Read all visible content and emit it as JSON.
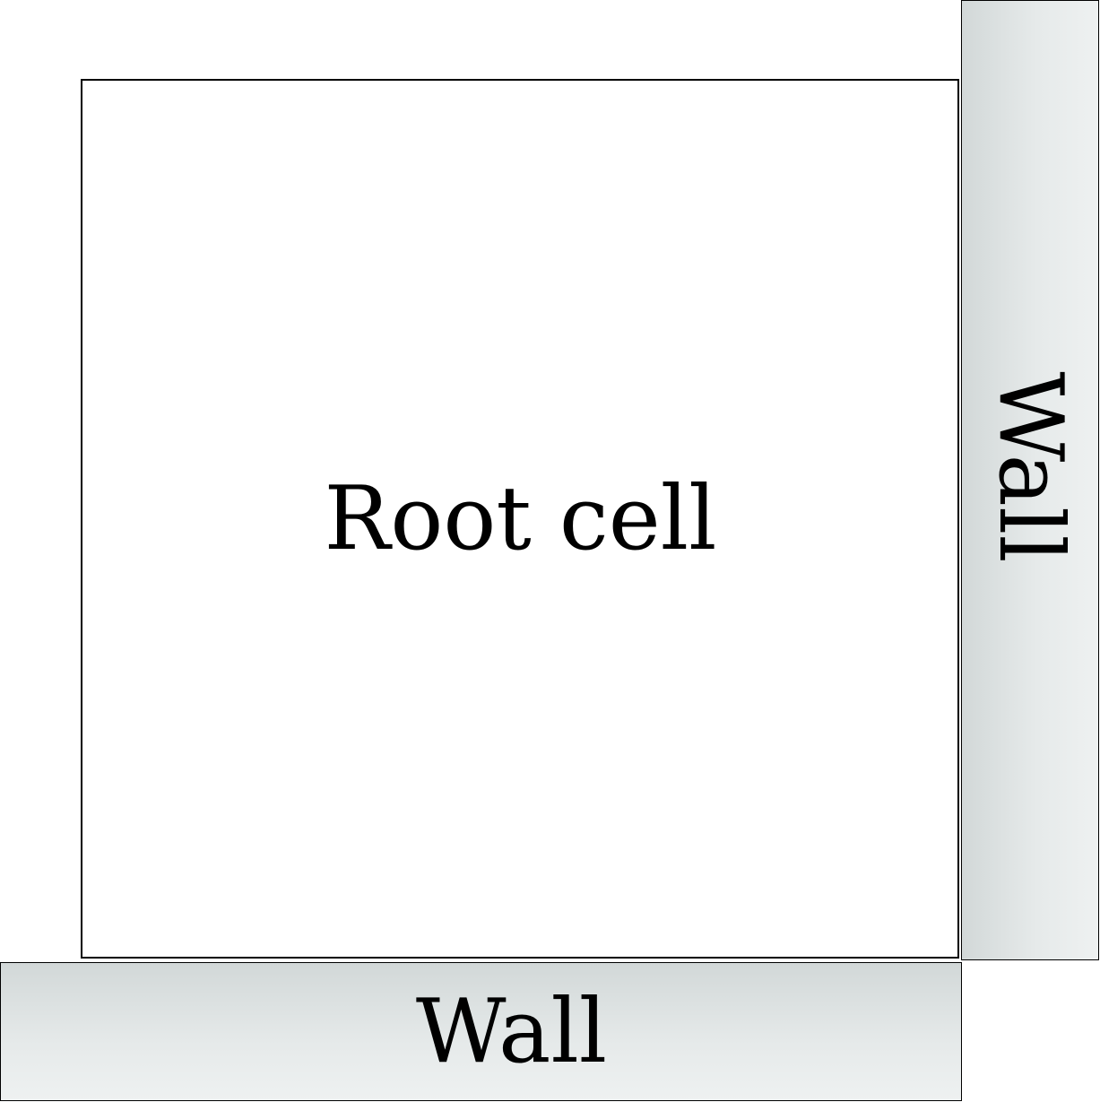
{
  "diagram": {
    "root_cell": {
      "label": "Root cell"
    },
    "walls": {
      "right_label": "Wall",
      "bottom_label": "Wall",
      "fill_colors": [
        "#d2d8d8",
        "#eef1f1"
      ]
    }
  }
}
